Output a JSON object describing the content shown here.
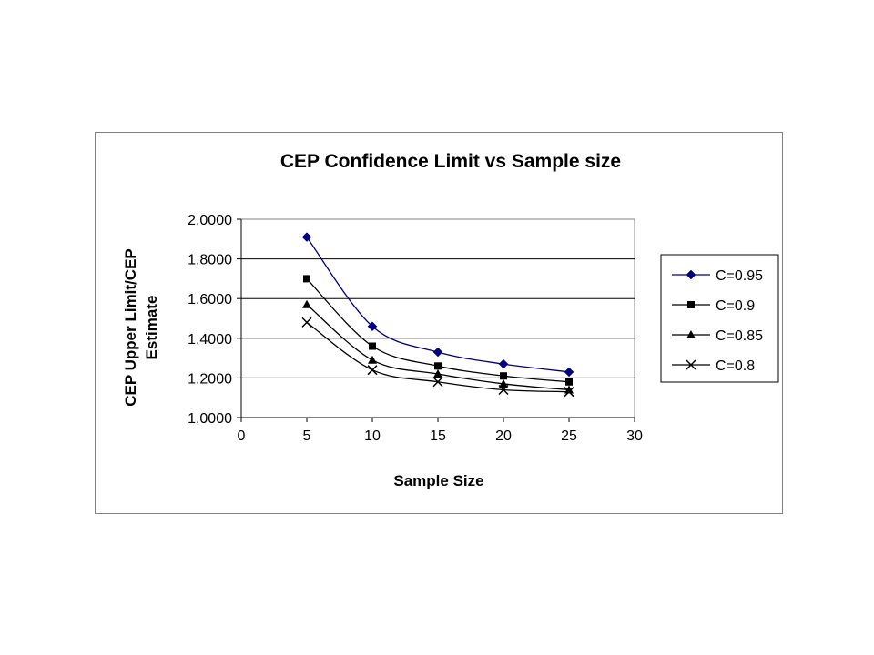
{
  "chart_data": {
    "type": "line",
    "title": "CEP Confidence Limit vs Sample size",
    "xlabel": "Sample Size",
    "ylabel_lines": [
      "CEP Upper Limit/CEP",
      "Estimate"
    ],
    "xlim": [
      0,
      30
    ],
    "ylim": [
      1.0,
      2.0
    ],
    "xticks": [
      "0",
      "5",
      "10",
      "15",
      "20",
      "25",
      "30"
    ],
    "yticks": [
      "1.0000",
      "1.2000",
      "1.4000",
      "1.6000",
      "1.8000",
      "2.0000"
    ],
    "grid": "horizontal",
    "legend_position": "right",
    "x": [
      5,
      10,
      15,
      20,
      25
    ],
    "series": [
      {
        "name": "C=0.95",
        "values": [
          1.91,
          1.46,
          1.33,
          1.27,
          1.23
        ],
        "color": "#000080",
        "marker": "diamond",
        "marker_color": "#000080"
      },
      {
        "name": "C=0.9",
        "values": [
          1.7,
          1.36,
          1.26,
          1.21,
          1.18
        ],
        "color": "#000000",
        "marker": "square",
        "marker_color": "#000000"
      },
      {
        "name": "C=0.85",
        "values": [
          1.57,
          1.29,
          1.22,
          1.17,
          1.14
        ],
        "color": "#000000",
        "marker": "triangle",
        "marker_color": "#000000"
      },
      {
        "name": "C=0.8",
        "values": [
          1.48,
          1.24,
          1.18,
          1.14,
          1.13
        ],
        "color": "#000000",
        "marker": "x",
        "marker_color": "#000000"
      }
    ]
  }
}
